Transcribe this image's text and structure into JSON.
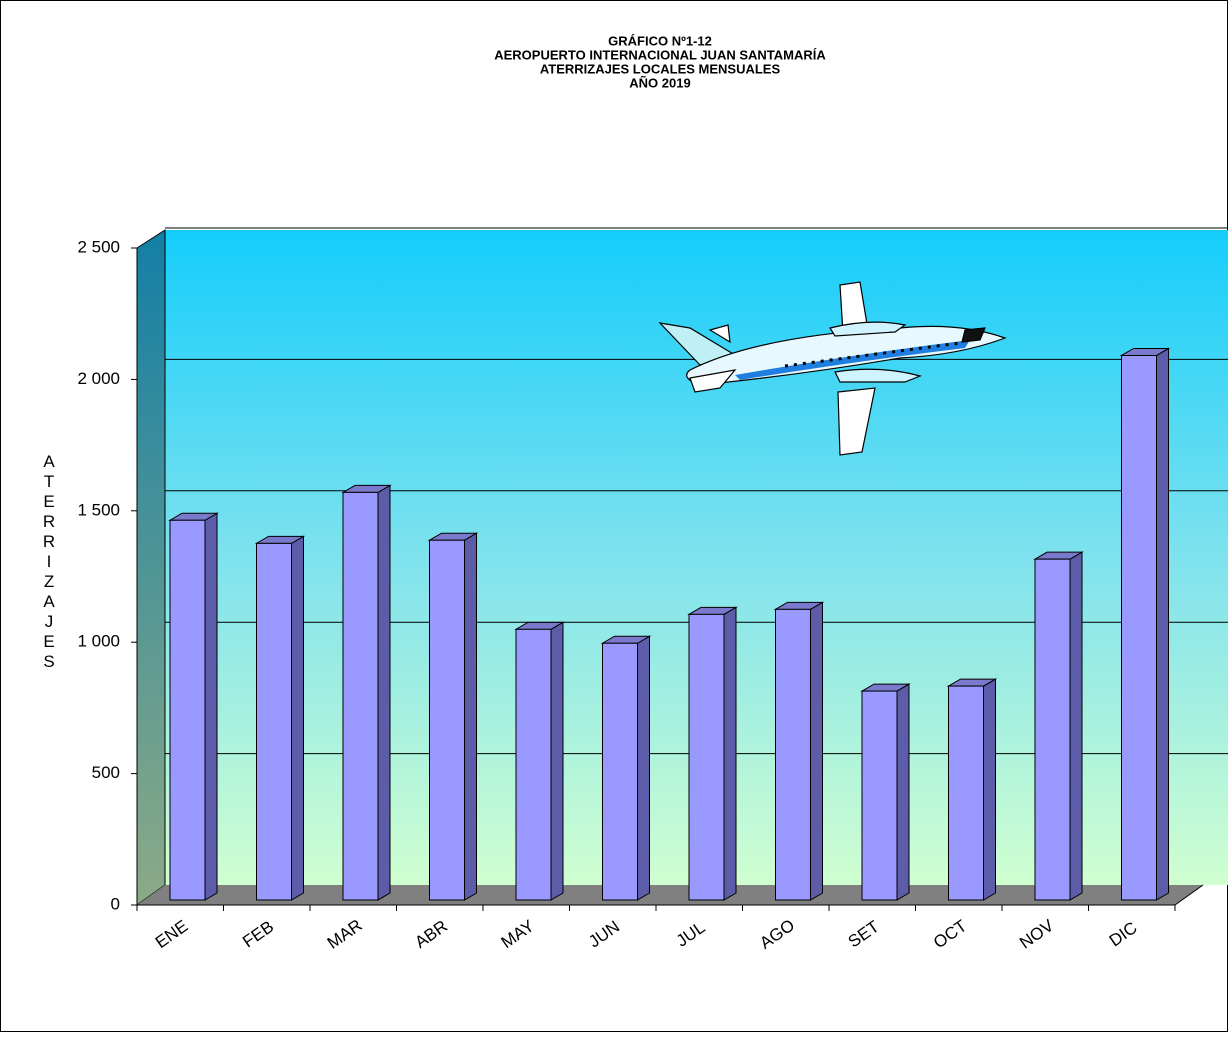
{
  "chart_data": {
    "type": "bar3d",
    "title": [
      "GRÁFICO Nº1-12",
      "AEROPUERTO  INTERNACIONAL  JUAN SANTAMARÍA",
      "ATERRIZAJES  LOCALES MENSUALES",
      "AÑO 2019"
    ],
    "y_label": "ATERRIZAJES",
    "categories": [
      "ENE",
      "FEB",
      "MAR",
      "ABR",
      "MAY",
      "JUN",
      "JUL",
      "AGO",
      "SET",
      "OCT",
      "NOV",
      "DIC"
    ],
    "values": [
      1445,
      1357,
      1551,
      1369,
      1030,
      977,
      1087,
      1106,
      795,
      814,
      1297,
      2072
    ],
    "color": "#9999ff",
    "ylim": [
      0,
      2500
    ],
    "yticks": [
      0,
      500,
      {
        "value": 1000,
        "label": "1 000"
      },
      {
        "value": 1500,
        "label": "1 500"
      },
      {
        "value": 2000,
        "label": "2 000"
      },
      {
        "value": 2500,
        "label": "2 500"
      }
    ],
    "grid": true
  }
}
